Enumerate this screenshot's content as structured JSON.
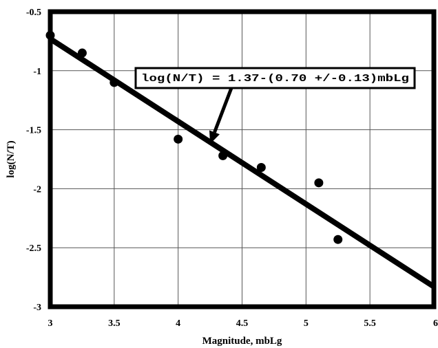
{
  "chart_data": {
    "type": "scatter",
    "xlabel": "Magnitude, mbLg",
    "ylabel": "log(N/T)",
    "xlim": [
      3,
      6
    ],
    "ylim": [
      -3,
      -0.5
    ],
    "x_ticks": [
      "3",
      "3.5",
      "4",
      "4.5",
      "5",
      "5.5",
      "6"
    ],
    "y_ticks": [
      "-0.5",
      "-1",
      "-1.5",
      "-2",
      "-2.5",
      "-3"
    ],
    "grid": true,
    "series": [
      {
        "x": [
          3.0,
          3.25,
          3.5,
          4.0,
          4.35,
          4.65,
          5.1,
          5.25
        ],
        "y": [
          -0.7,
          -0.85,
          -1.1,
          -1.58,
          -1.72,
          -1.82,
          -1.95,
          -2.43
        ]
      }
    ],
    "fit_line": {
      "intercept": 1.37,
      "slope": -0.7,
      "x_range": [
        3,
        6
      ]
    },
    "annotation": {
      "text": "log(N/T) = 1.37-(0.70 +/-0.13)mbLg",
      "arrow_target": {
        "x": 4.25,
        "y": -1.62
      }
    }
  }
}
